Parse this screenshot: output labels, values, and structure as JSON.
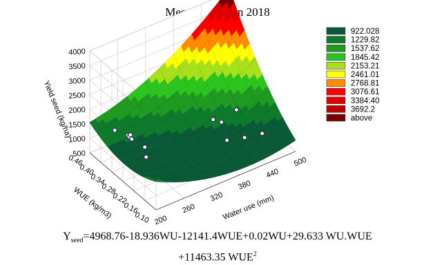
{
  "chart_data": {
    "type": "surface",
    "title": "Mesri cultivar in 2018",
    "xlabel": "Water use (mm)",
    "ylabel": "WUE (kg/m3)",
    "zlabel": "Yield seed (kg/ha)",
    "x_ticks": [
      "200",
      "260",
      "320",
      "380",
      "440",
      "500"
    ],
    "y_ticks": [
      "0.10",
      "0.16",
      "0.22",
      "0.28",
      "0.34",
      "0.40",
      "0.46"
    ],
    "z_ticks": [
      "500",
      "1000",
      "1500",
      "2000",
      "2500",
      "3000",
      "3500",
      "4000"
    ],
    "xlim": [
      200,
      500
    ],
    "ylim": [
      0.1,
      0.46
    ],
    "zlim": [
      500,
      4000
    ],
    "grid": true,
    "legend_position": "right",
    "legend": [
      {
        "label": "922.028",
        "color": "#0a5a38"
      },
      {
        "label": "1229.82",
        "color": "#107a2c"
      },
      {
        "label": "1537.62",
        "color": "#1f9a22"
      },
      {
        "label": "1845.42",
        "color": "#2dc41f"
      },
      {
        "label": "2153.21",
        "color": "#a8e01c"
      },
      {
        "label": "2461.01",
        "color": "#ffff00"
      },
      {
        "label": "2768.81",
        "color": "#ff8c00"
      },
      {
        "label": "3076.61",
        "color": "#ff0000"
      },
      {
        "label": "3384.40",
        "color": "#e00000"
      },
      {
        "label": "3692.2",
        "color": "#b80000"
      },
      {
        "label": "above",
        "color": "#7a0000"
      }
    ],
    "observed_points": [
      {
        "x": 230,
        "y": 0.4,
        "z": 1400
      },
      {
        "x": 250,
        "y": 0.38,
        "z": 1200
      },
      {
        "x": 245,
        "y": 0.36,
        "z": 1300
      },
      {
        "x": 240,
        "y": 0.34,
        "z": 1500
      },
      {
        "x": 235,
        "y": 0.32,
        "z": 1500
      },
      {
        "x": 255,
        "y": 0.3,
        "z": 1200
      },
      {
        "x": 250,
        "y": 0.28,
        "z": 1000
      },
      {
        "x": 420,
        "y": 0.3,
        "z": 950
      },
      {
        "x": 410,
        "y": 0.32,
        "z": 1000
      },
      {
        "x": 460,
        "y": 0.32,
        "z": 1000
      },
      {
        "x": 400,
        "y": 0.22,
        "z": 900
      },
      {
        "x": 430,
        "y": 0.2,
        "z": 900
      },
      {
        "x": 460,
        "y": 0.18,
        "z": 950
      }
    ],
    "model": {
      "c0": 4968.76,
      "wu": -18.936,
      "wue": -12141.4,
      "wu2": 0.02,
      "wu_wue": 29.633,
      "wue2": 11463.35
    }
  },
  "equation": {
    "lhs": "Y",
    "lhs_sub": "seed",
    "rhs_line1": "=4968.76-18.936WU-12141.4WUE+0.02WU+29.633 WU.WUE",
    "rhs_line2": "+11463.35 WUE",
    "rhs_line2_sup": "2"
  }
}
